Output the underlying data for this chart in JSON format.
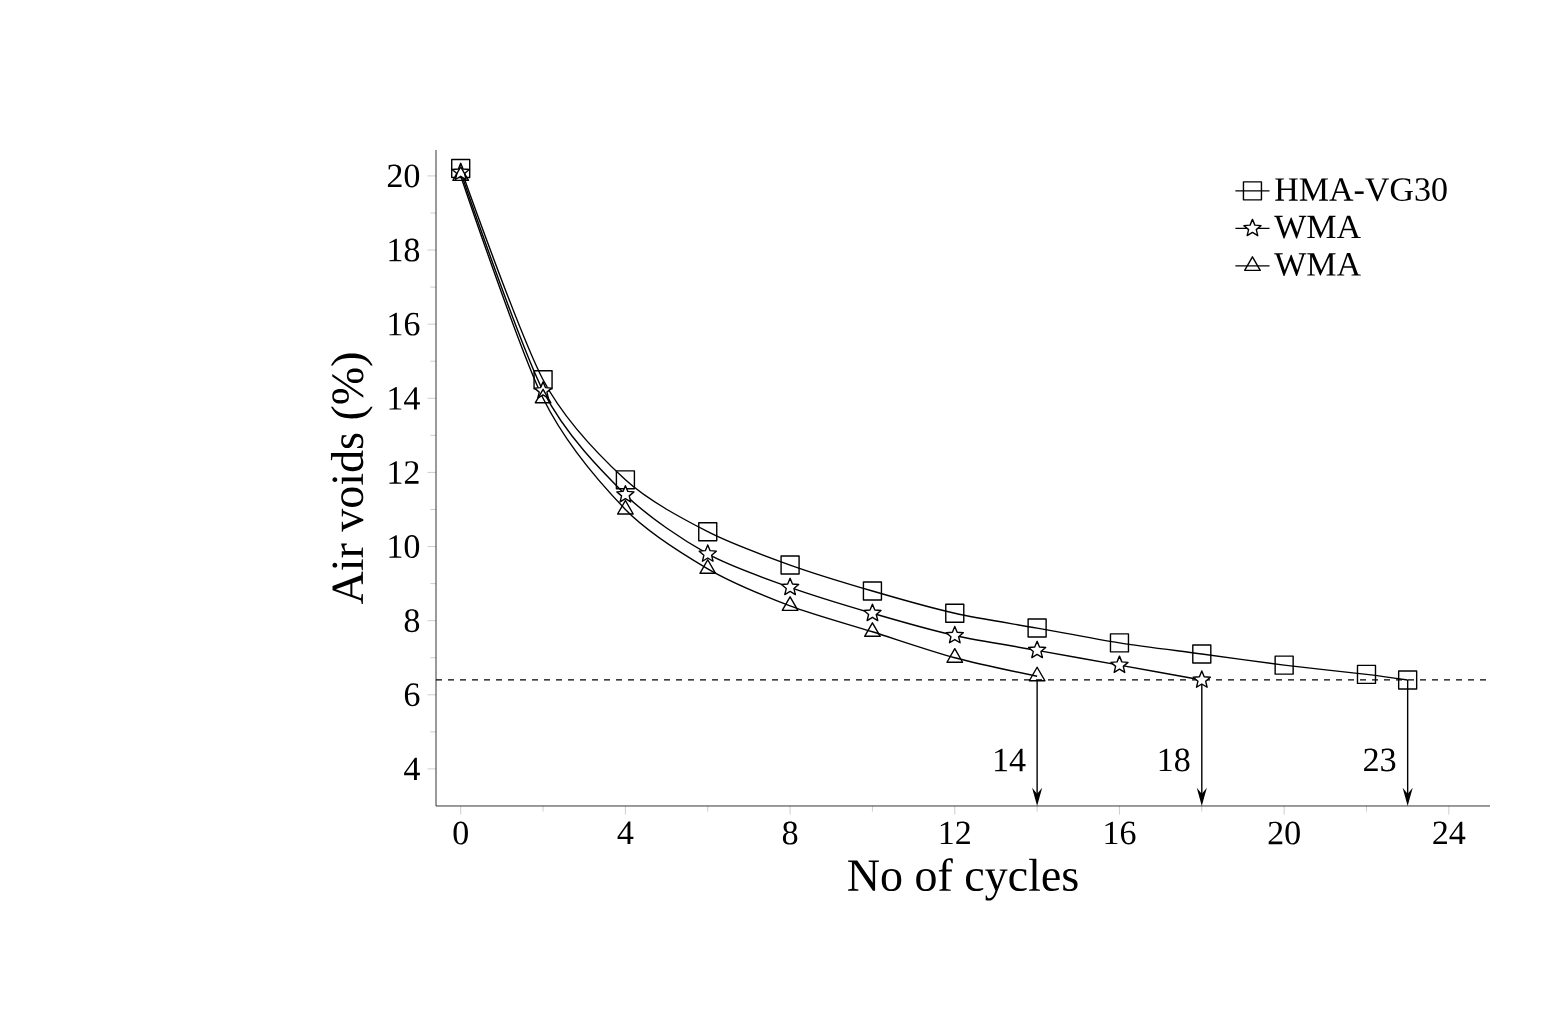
{
  "chart_data": {
    "type": "line",
    "xlabel": "No of cycles",
    "ylabel": "Air voids (%)",
    "xlim": [
      -0.6,
      25
    ],
    "ylim": [
      3,
      20.7
    ],
    "xticks": [
      0,
      4,
      8,
      12,
      16,
      20,
      24
    ],
    "yticks": [
      4,
      6,
      8,
      10,
      12,
      14,
      16,
      18,
      20
    ],
    "grid": false,
    "legend": "top right",
    "line_style": "solid",
    "series": [
      {
        "name": "HMA-VG30",
        "color": "#000000",
        "marker": "square",
        "x": [
          0,
          2,
          4,
          6,
          8,
          10,
          12,
          14,
          16,
          18,
          20,
          22,
          23
        ],
        "values": [
          20.2,
          14.5,
          11.8,
          10.4,
          9.5,
          8.8,
          8.2,
          7.8,
          7.4,
          7.1,
          6.8,
          6.55,
          6.4
        ]
      },
      {
        "name": "WMA",
        "color": "#000000",
        "marker": "star",
        "x": [
          0,
          2,
          4,
          6,
          8,
          10,
          12,
          14,
          16,
          18
        ],
        "values": [
          20.1,
          14.2,
          11.4,
          9.8,
          8.9,
          8.2,
          7.6,
          7.2,
          6.8,
          6.4
        ]
      },
      {
        "name": "WMA",
        "color": "#000000",
        "marker": "triangle",
        "x": [
          0,
          2,
          4,
          6,
          8,
          10,
          12,
          14
        ],
        "values": [
          20.0,
          14.0,
          11.0,
          9.4,
          8.4,
          7.7,
          7.0,
          6.5
        ]
      }
    ],
    "ref_lines": [
      {
        "axis": "y",
        "value": 6.4,
        "line_style": "dashed",
        "color": "#000000"
      }
    ],
    "annotations": [
      {
        "text": "14",
        "x": 14,
        "y": 6.4
      },
      {
        "text": "18",
        "x": 18,
        "y": 6.4
      },
      {
        "text": "23",
        "x": 23,
        "y": 6.4
      }
    ]
  }
}
